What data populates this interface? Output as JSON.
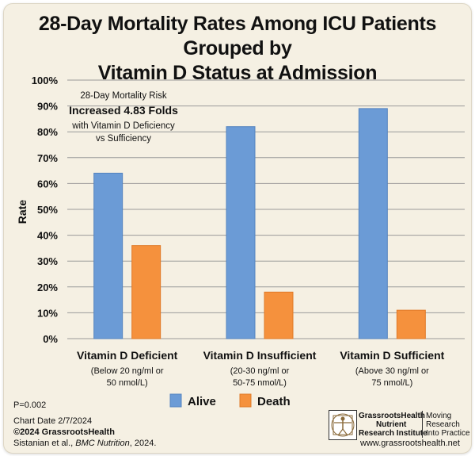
{
  "title_line1": "28-Day Mortality Rates Among ICU Patients Grouped by",
  "title_line2": "Vitamin D Status at Admission",
  "chart_data": {
    "type": "bar",
    "ylabel": "Rate",
    "ylim": [
      0,
      100
    ],
    "yticks": [
      "0%",
      "10%",
      "20%",
      "30%",
      "40%",
      "50%",
      "60%",
      "70%",
      "80%",
      "90%",
      "100%"
    ],
    "categories": [
      "Vitamin D Deficient",
      "Vitamin D Insufficient",
      "Vitamin D Sufficient"
    ],
    "category_sublabels": [
      [
        "(Below 20 ng/ml or",
        "50 nmol/L)"
      ],
      [
        "(20-30 ng/ml or",
        "50-75 nmol/L)"
      ],
      [
        "(Above 30 ng/ml or",
        "75 nmol/L)"
      ]
    ],
    "series": [
      {
        "name": "Alive",
        "color": "#6b9bd6",
        "values": [
          64,
          82,
          89
        ]
      },
      {
        "name": "Death",
        "color": "#f5913d",
        "values": [
          36,
          18,
          11
        ]
      }
    ],
    "annotation": [
      "28-Day Mortality Risk",
      "Increased 4.83 Folds",
      "with Vitamin D Deficiency",
      "vs Sufficiency"
    ],
    "grid": true,
    "legend_position": "bottom"
  },
  "p_value": "P=0.002",
  "chart_date": "Chart Date 2/7/2024",
  "copyright": "©2024 GrassrootsHealth",
  "citation_authors": "Sistanian et al., ",
  "citation_journal": "BMC Nutrition",
  "citation_year": ", 2024.",
  "logo": {
    "name_line1": "GrassrootsHealth",
    "name_line2": "Nutrient",
    "name_line3": "Research Institute",
    "tagline_line1": "Moving",
    "tagline_line2": "Research",
    "tagline_line3": "Into Practice",
    "website": "www.grassrootshealth.net"
  }
}
